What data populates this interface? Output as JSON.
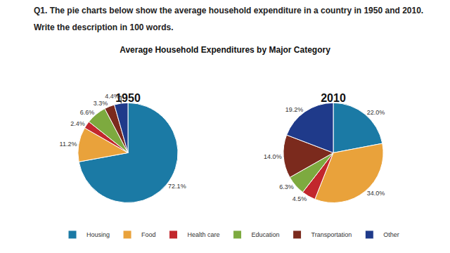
{
  "header": {
    "question": "Q1. The pie charts below show the average household expenditure in a country in 1950 and 2010.",
    "instruction": "Write the description in 100 words."
  },
  "chart_data": {
    "type": "pie",
    "title": "Average Household Expenditures by Major Category",
    "categories": [
      "Housing",
      "Food",
      "Health care",
      "Education",
      "Transportation",
      "Other"
    ],
    "colors": [
      "#1b7aa5",
      "#e9a23b",
      "#c2272d",
      "#7daa3f",
      "#7b2a1d",
      "#1f3a8a"
    ],
    "series": [
      {
        "name": "1950",
        "values": [
          72.1,
          11.2,
          2.4,
          6.6,
          3.3,
          4.4
        ],
        "value_labels": [
          "72.1%",
          "11.2%",
          "2.4%",
          "6.6%",
          "3.3%",
          "4.4%"
        ]
      },
      {
        "name": "2010",
        "values": [
          22.0,
          34.0,
          4.5,
          6.3,
          14.0,
          19.2
        ],
        "value_labels": [
          "22.0%",
          "34.0%",
          "4.5%",
          "6.3%",
          "14.0%",
          "19.2%"
        ]
      }
    ],
    "data_labels": true,
    "legend": "bottom"
  }
}
